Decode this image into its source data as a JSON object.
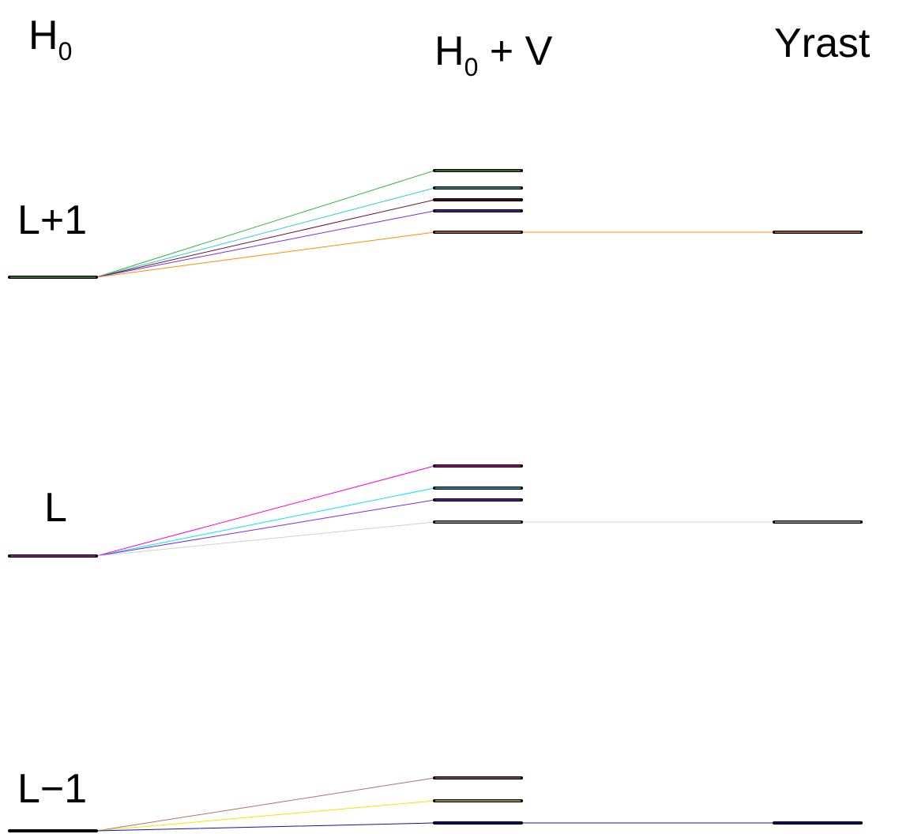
{
  "columns": {
    "h0": {
      "main": "H",
      "sub": "0",
      "rest": ""
    },
    "h0v": {
      "main": "H",
      "sub": "0",
      "rest": " + V"
    },
    "yrast": {
      "main": "Yrast",
      "sub": "",
      "rest": ""
    }
  },
  "groups": [
    {
      "label": "L+1",
      "base_color": "#5a9e4a",
      "levels": [
        {
          "color": "#3cb33c",
          "yrast": false
        },
        {
          "color": "#33cccc",
          "yrast": false
        },
        {
          "color": "#6b0f2e",
          "yrast": false
        },
        {
          "color": "#7a2be0",
          "yrast": false
        },
        {
          "color": "#ff8c00",
          "yrast": true
        }
      ]
    },
    {
      "label": "L",
      "base_color": "#e020e0",
      "levels": [
        {
          "color": "#ff00cc",
          "yrast": false
        },
        {
          "color": "#00e5ff",
          "yrast": false
        },
        {
          "color": "#7a2be0",
          "yrast": false
        },
        {
          "color": "#d0d0d0",
          "yrast": true
        }
      ]
    },
    {
      "label": "L−1",
      "base_color": "#000000",
      "levels": [
        {
          "color": "#b07070",
          "yrast": false
        },
        {
          "color": "#f5e400",
          "yrast": false
        },
        {
          "color": "#1010c0",
          "yrast": true
        }
      ]
    }
  ]
}
